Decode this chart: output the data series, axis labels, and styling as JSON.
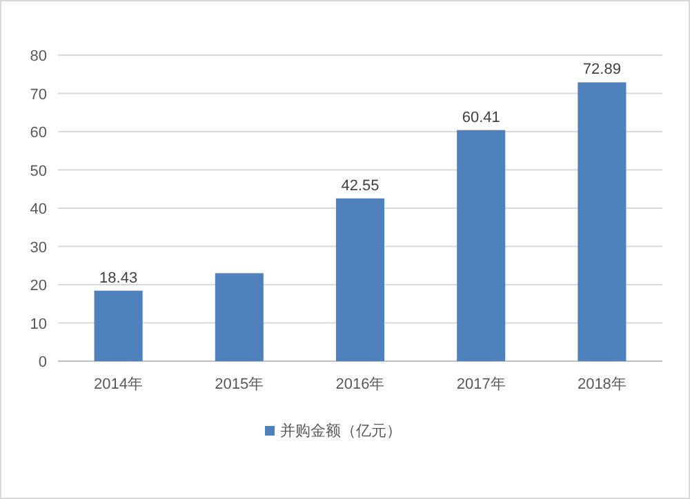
{
  "chart_data": {
    "type": "bar",
    "categories": [
      "2014年",
      "2015年",
      "2016年",
      "2017年",
      "2018年"
    ],
    "series": [
      {
        "name": "并购金额（亿元）",
        "color": "#4f81bd",
        "values": [
          18.43,
          23,
          42.55,
          60.41,
          72.89
        ],
        "value_labels": [
          "18.43",
          null,
          "42.55",
          "60.41",
          "72.89"
        ]
      }
    ],
    "ylim": [
      0,
      80
    ],
    "yticks": [
      0,
      10,
      20,
      30,
      40,
      50,
      60,
      70,
      80
    ],
    "grid": "y",
    "legend": "bottom"
  }
}
